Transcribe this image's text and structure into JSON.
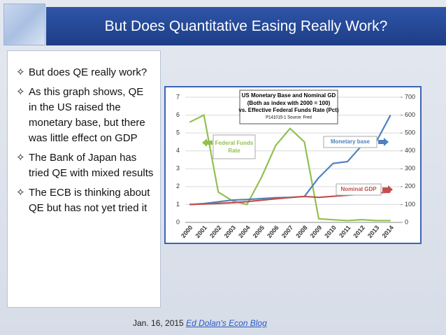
{
  "header": {
    "title": "But Does Quantitative Easing Really Work?"
  },
  "bullets": [
    {
      "symbol": "✧",
      "text": "But does QE really work?"
    },
    {
      "symbol": "✧",
      "text": "As this graph shows, QE in the US raised the monetary base, but there was little effect on GDP"
    },
    {
      "symbol": "✧",
      "text": "The Bank of Japan has tried QE with mixed results"
    },
    {
      "symbol": "✧",
      "text": "The ECB is thinking about QE but has not yet tried it"
    }
  ],
  "footer": {
    "date": "Jan. 16, 2015",
    "link": "Ed Dolan's Econ Blog"
  },
  "chart_data": {
    "type": "line",
    "title": "US Monetary Base and Nominal GD",
    "subtitles": [
      "(Both as index with 2000 = 100)",
      "vs. Effective Federal Funds Rate (Pct)",
      "P141015-1 Source: Fred"
    ],
    "categories": [
      "2000",
      "2001",
      "2002",
      "2003",
      "2004",
      "2005",
      "2006",
      "2007",
      "2008",
      "2009",
      "2010",
      "2011",
      "2012",
      "2013",
      "2014"
    ],
    "series": [
      {
        "name": "Federal Funds Rate",
        "color": "#92c050",
        "axis": "y",
        "values": [
          5.6,
          6.0,
          1.7,
          1.2,
          1.0,
          2.5,
          4.3,
          5.25,
          4.5,
          0.2,
          0.15,
          0.1,
          0.15,
          0.1,
          0.1
        ]
      },
      {
        "name": "Monetary base",
        "color": "#4f81bd",
        "axis": "y2",
        "values": [
          100,
          105,
          115,
          125,
          128,
          133,
          138,
          140,
          145,
          250,
          330,
          340,
          430,
          450,
          600
        ]
      },
      {
        "name": "Nominal GDP",
        "color": "#c0504d",
        "axis": "y2",
        "values": [
          100,
          103,
          106,
          110,
          116,
          124,
          132,
          139,
          145,
          140,
          146,
          152,
          158,
          164,
          170
        ]
      }
    ],
    "ylim": [
      0,
      7
    ],
    "yticks": [
      0,
      1,
      2,
      3,
      4,
      5,
      6,
      7
    ],
    "y2lim": [
      0,
      700
    ],
    "y2ticks": [
      0,
      100,
      200,
      300,
      400,
      500,
      600,
      700
    ],
    "grid": true
  }
}
